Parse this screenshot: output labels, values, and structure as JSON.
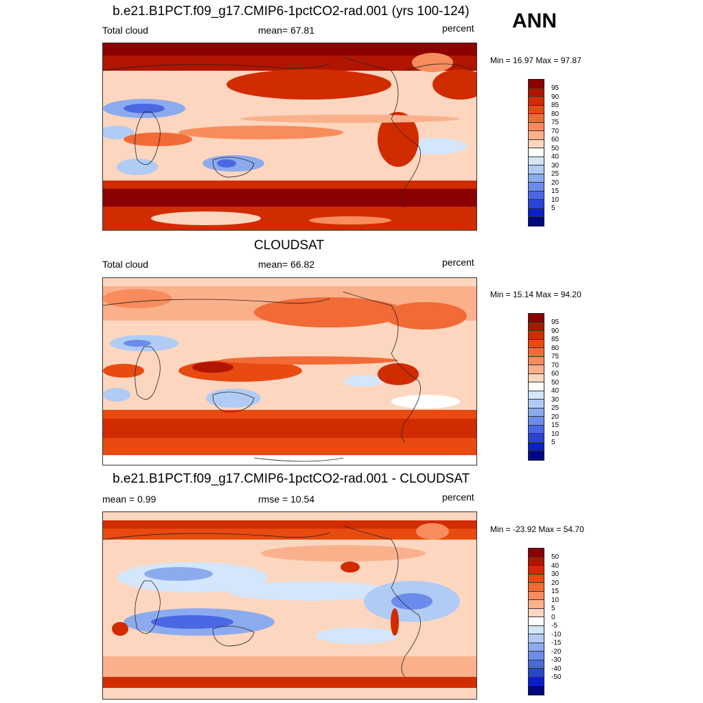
{
  "season": "ANN",
  "panels": [
    {
      "title": "b.e21.B1PCT.f09_g17.CMIP6-1pctCO2-rad.001 (yrs 100-124)",
      "left": "Total cloud",
      "center": "mean=  67.81",
      "right": "percent",
      "minmax": "Min =  16.97 Max =  97.87",
      "colorbar": {
        "labels": [
          "95",
          "90",
          "85",
          "80",
          "75",
          "70",
          "60",
          "50",
          "40",
          "30",
          "25",
          "20",
          "15",
          "10",
          "5"
        ],
        "colors": [
          "#8b0000",
          "#b11500",
          "#d12b00",
          "#e84a10",
          "#f26a35",
          "#f88c5c",
          "#fbb08c",
          "#fdd6bf",
          "#ffffff",
          "#d3e6fb",
          "#b0ccf5",
          "#8cabef",
          "#6b8cea",
          "#4a68e3",
          "#2a44d8",
          "#0b1fc8",
          "#00087f"
        ]
      }
    },
    {
      "title": "CLOUDSAT",
      "left": "Total cloud",
      "center": "mean=  66.82",
      "right": "percent",
      "minmax": "Min =  15.14 Max =  94.20",
      "colorbar": {
        "labels": [
          "95",
          "90",
          "85",
          "80",
          "75",
          "70",
          "60",
          "50",
          "40",
          "30",
          "25",
          "20",
          "15",
          "10",
          "5"
        ],
        "colors": [
          "#8b0000",
          "#b11500",
          "#d12b00",
          "#e84a10",
          "#f26a35",
          "#f88c5c",
          "#fbb08c",
          "#fdd6bf",
          "#ffffff",
          "#d3e6fb",
          "#b0ccf5",
          "#8cabef",
          "#6b8cea",
          "#4a68e3",
          "#2a44d8",
          "#0b1fc8",
          "#00087f"
        ]
      }
    },
    {
      "title": "b.e21.B1PCT.f09_g17.CMIP6-1pctCO2-rad.001 - CLOUDSAT",
      "left": "mean =   0.99",
      "center": "rmse =  10.54",
      "right": "percent",
      "minmax": "Min = -23.92 Max =  54.70",
      "colorbar": {
        "labels": [
          "50",
          "40",
          "30",
          "20",
          "15",
          "10",
          "5",
          "0",
          "-5",
          "-10",
          "-15",
          "-20",
          "-30",
          "-40",
          "-50"
        ],
        "colors": [
          "#8b0000",
          "#b11500",
          "#d12b00",
          "#e84a10",
          "#f26a35",
          "#f88c5c",
          "#fbb08c",
          "#fdd6bf",
          "#ffffff",
          "#d3e6fb",
          "#b0ccf5",
          "#8cabef",
          "#6b8cea",
          "#4a68e3",
          "#2a44d8",
          "#0b1fc8",
          "#00087f"
        ]
      }
    }
  ]
}
